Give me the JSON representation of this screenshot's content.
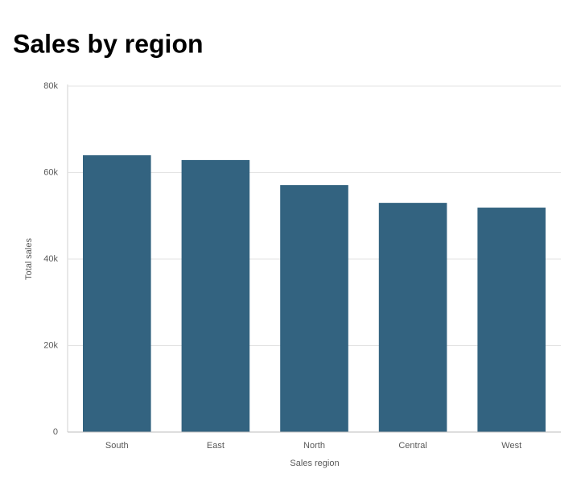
{
  "chart_data": {
    "type": "bar",
    "title": "Sales by region",
    "x_label": "Sales region",
    "y_label": "Total sales",
    "categories": [
      "South",
      "East",
      "North",
      "Central",
      "West"
    ],
    "values": [
      64000,
      62900,
      57100,
      53000,
      51900
    ],
    "color": "#336380",
    "ylim": [
      0,
      80000
    ],
    "yticks": [
      0,
      {
        "value": 20000,
        "label": "20k"
      },
      {
        "value": 40000,
        "label": "40k"
      },
      {
        "value": 60000,
        "label": "60k"
      },
      {
        "value": 80000,
        "label": "80k"
      }
    ],
    "grid": true
  }
}
